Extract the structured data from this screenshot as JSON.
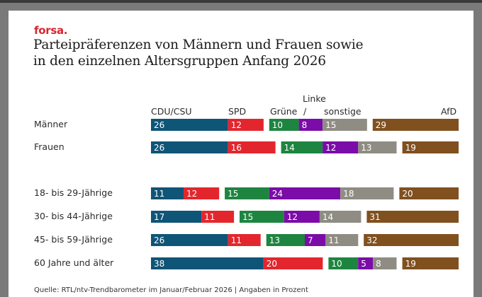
{
  "brand": "forsa.",
  "title_line1": "Parteipräferenzen von Männern und Frauen sowie",
  "title_line2": "in den einzelnen Altersgruppen Anfang 2026",
  "footer": "Quelle: RTL/ntv-Trendbarometer im Januar/Februar 2026 | Angaben in Prozent",
  "headers": {
    "cdu": "CDU/CSU",
    "spd": "SPD",
    "gruene": "Grüne",
    "slash": "/",
    "linke": "Linke",
    "sonstige": "sonstige",
    "afd": "AfD"
  },
  "colors": {
    "CDU/CSU": "#0f5577",
    "SPD": "#e3262d",
    "Grüne": "#1e8540",
    "Linke": "#7b0ca8",
    "sonstige": "#8f8c84",
    "AfD": "#80501f"
  },
  "chart_data": {
    "type": "bar",
    "orientation": "horizontal-stacked-grouped",
    "title": "Parteipräferenzen von Männern und Frauen sowie in den einzelnen Altersgruppen Anfang 2026",
    "unit": "Prozent",
    "series_names": [
      "CDU/CSU",
      "SPD",
      "Grüne",
      "Linke",
      "sonstige",
      "AfD"
    ],
    "groups": [
      [
        "CDU/CSU",
        "SPD"
      ],
      [
        "Grüne",
        "Linke",
        "sonstige"
      ],
      [
        "AfD"
      ]
    ],
    "categories": [
      "Männer",
      "Frauen",
      "18- bis 29-Jährige",
      "30- bis 44-Jährige",
      "45- bis 59-Jährige",
      "60 Jahre und älter"
    ],
    "series": [
      {
        "name": "CDU/CSU",
        "values": [
          26,
          26,
          11,
          17,
          26,
          38
        ]
      },
      {
        "name": "SPD",
        "values": [
          12,
          16,
          12,
          11,
          11,
          20
        ]
      },
      {
        "name": "Grüne",
        "values": [
          10,
          14,
          15,
          15,
          13,
          10
        ]
      },
      {
        "name": "Linke",
        "values": [
          8,
          12,
          24,
          12,
          7,
          5
        ]
      },
      {
        "name": "sonstige",
        "values": [
          15,
          13,
          18,
          14,
          11,
          8
        ]
      },
      {
        "name": "AfD",
        "values": [
          29,
          19,
          20,
          31,
          32,
          19
        ]
      }
    ],
    "legend": "column headers above first row"
  }
}
